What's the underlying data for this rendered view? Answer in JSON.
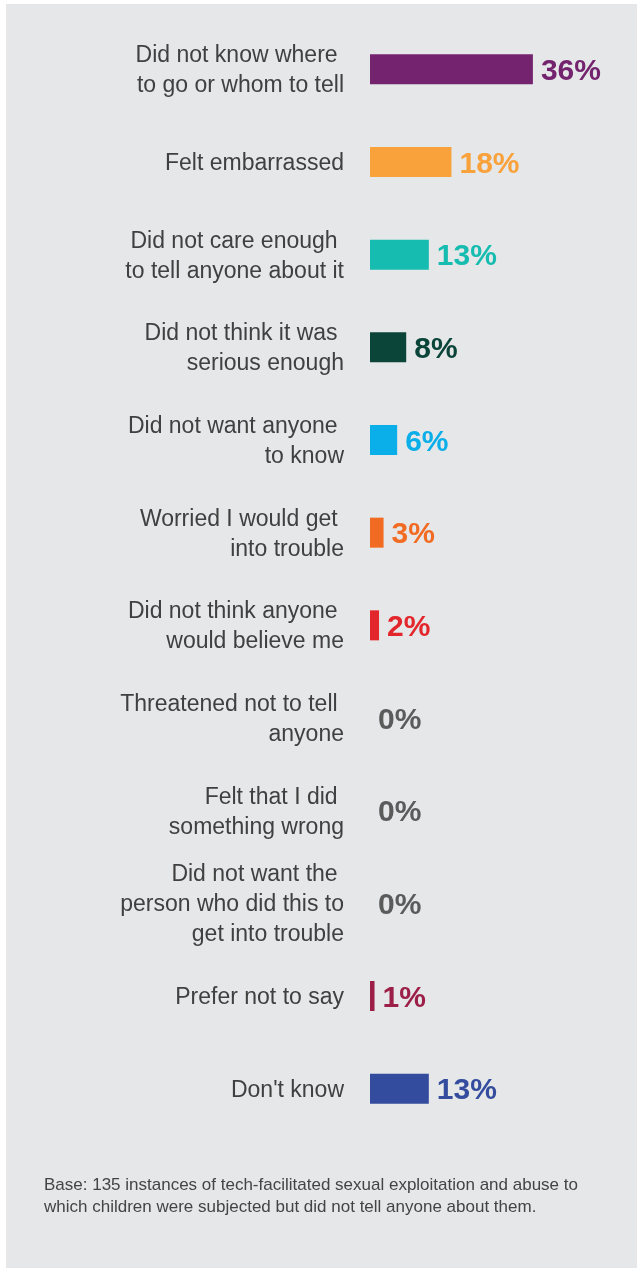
{
  "chart_data": {
    "type": "bar",
    "orientation": "horizontal",
    "grid": false,
    "value_labels": [
      "36%",
      "18%",
      "13%",
      "8%",
      "6%",
      "3%",
      "2%",
      "0%",
      "0%",
      "0%",
      "1%",
      "13%"
    ],
    "categories": [
      "Did not know where to go or whom to tell",
      "Felt embarrassed",
      "Did not care enough to tell anyone about it",
      "Did not think it was serious enough",
      "Did not want anyone to know",
      "Worried I would get into trouble",
      "Did not think anyone would believe me",
      "Threatened not to tell anyone",
      "Felt that I did something wrong",
      "Did not want the person who did this to get into trouble",
      "Prefer not to say",
      "Don't know"
    ],
    "values": [
      36,
      18,
      13,
      8,
      6,
      3,
      2,
      0,
      0,
      0,
      1,
      13
    ],
    "colors": [
      "#74236f",
      "#f9a13a",
      "#17bcb0",
      "#0b4539",
      "#0aaee9",
      "#f26b22",
      "#e3262b",
      "#5b5b5b",
      "#5b5b5b",
      "#5b5b5b",
      "#9b1f47",
      "#334c9e"
    ],
    "annotations": [
      "Base: 135 instances of tech-facilitated sexual exploitation and abuse to which children were subjected but did not tell anyone about them."
    ]
  }
}
